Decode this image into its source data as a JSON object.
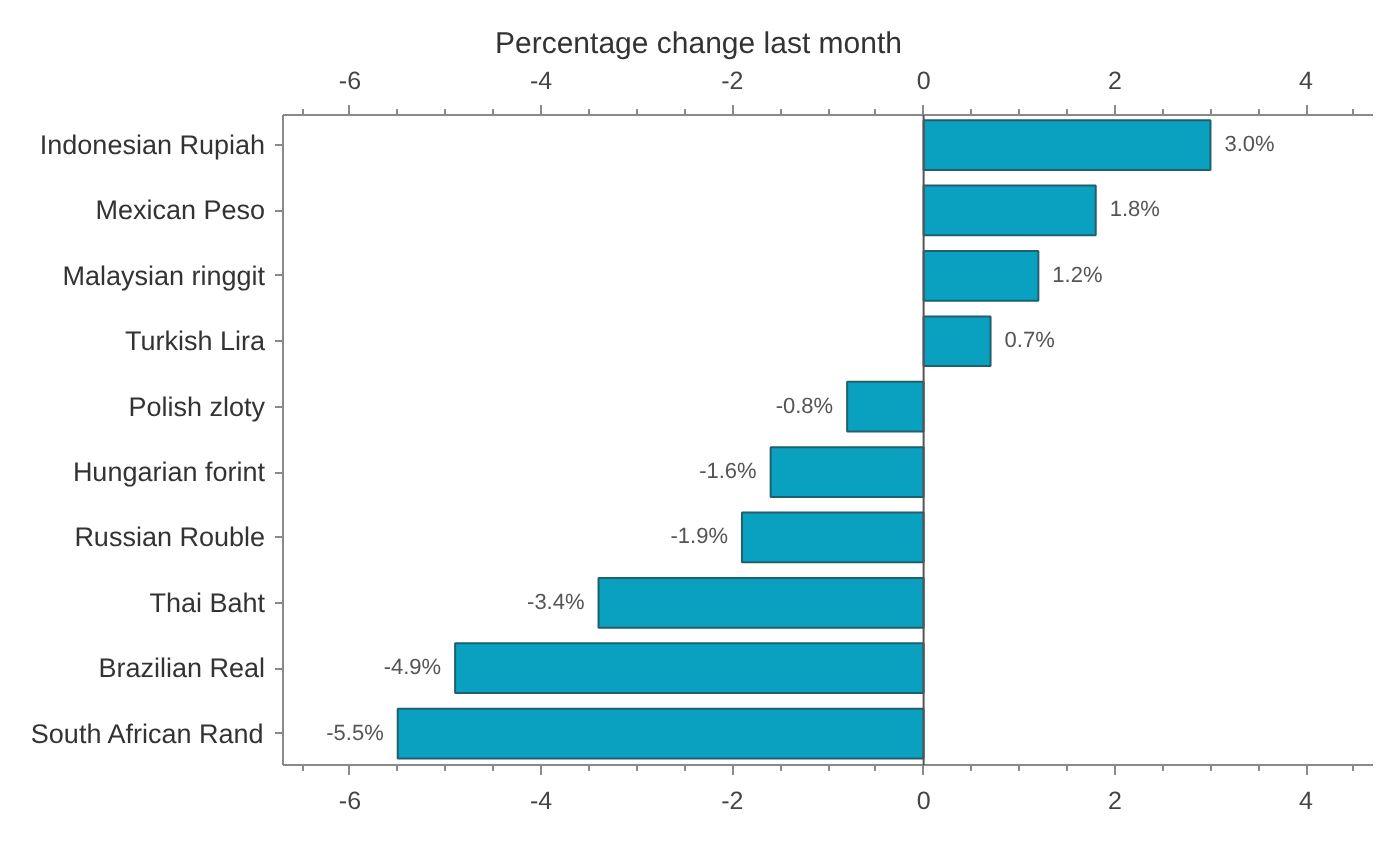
{
  "chart_data": {
    "type": "bar",
    "orientation": "horizontal",
    "title": "Percentage change last month",
    "categories": [
      "Indonesian Rupiah",
      "Mexican Peso",
      "Malaysian ringgit",
      "Turkish Lira",
      "Polish zloty",
      "Hungarian forint",
      "Russian Rouble",
      "Thai Baht",
      "Brazilian Real",
      "South African Rand"
    ],
    "values": [
      3.0,
      1.8,
      1.2,
      0.7,
      -0.8,
      -1.6,
      -1.9,
      -3.4,
      -4.9,
      -5.5
    ],
    "value_labels": [
      "3.0%",
      "1.8%",
      "1.2%",
      "0.7%",
      "-0.8%",
      "-1.6%",
      "-1.9%",
      "-3.4%",
      "-4.9%",
      "-5.5%"
    ],
    "color": "#0aa0c0",
    "xlim": [
      -6.7,
      4.7
    ],
    "xticks": [
      {
        "value": -6.5,
        "label": null
      },
      -6,
      {
        "value": -5.5,
        "label": null
      },
      {
        "value": -5,
        "label": null
      },
      {
        "value": -4.5,
        "label": null
      },
      -4,
      {
        "value": -3.5,
        "label": null
      },
      {
        "value": -3,
        "label": null
      },
      {
        "value": -2.5,
        "label": null
      },
      -2,
      {
        "value": -1.5,
        "label": null
      },
      {
        "value": -1,
        "label": null
      },
      {
        "value": -0.5,
        "label": null
      },
      0,
      {
        "value": 0.5,
        "label": null
      },
      {
        "value": 1,
        "label": null
      },
      {
        "value": 1.5,
        "label": null
      },
      2,
      {
        "value": 2.5,
        "label": null
      },
      {
        "value": 3,
        "label": null
      },
      {
        "value": 3.5,
        "label": null
      },
      4,
      {
        "value": 4.5,
        "label": null
      }
    ],
    "x2lim": [
      -6.7,
      4.7
    ],
    "x2ticks": [
      {
        "value": -6.5,
        "label": null
      },
      -6,
      {
        "value": -5.5,
        "label": null
      },
      {
        "value": -5,
        "label": null
      },
      {
        "value": -4.5,
        "label": null
      },
      -4,
      {
        "value": -3.5,
        "label": null
      },
      {
        "value": -3,
        "label": null
      },
      {
        "value": -2.5,
        "label": null
      },
      -2,
      {
        "value": -1.5,
        "label": null
      },
      {
        "value": -1,
        "label": null
      },
      {
        "value": -0.5,
        "label": null
      },
      0,
      {
        "value": 0.5,
        "label": null
      },
      {
        "value": 1,
        "label": null
      },
      {
        "value": 1.5,
        "label": null
      },
      2,
      {
        "value": 2.5,
        "label": null
      },
      {
        "value": 3,
        "label": null
      },
      {
        "value": 3.5,
        "label": null
      },
      4,
      {
        "value": 4.5,
        "label": null
      }
    ],
    "ref_lines": [
      {
        "axis": "x",
        "value": 0
      }
    ],
    "grid": false
  }
}
